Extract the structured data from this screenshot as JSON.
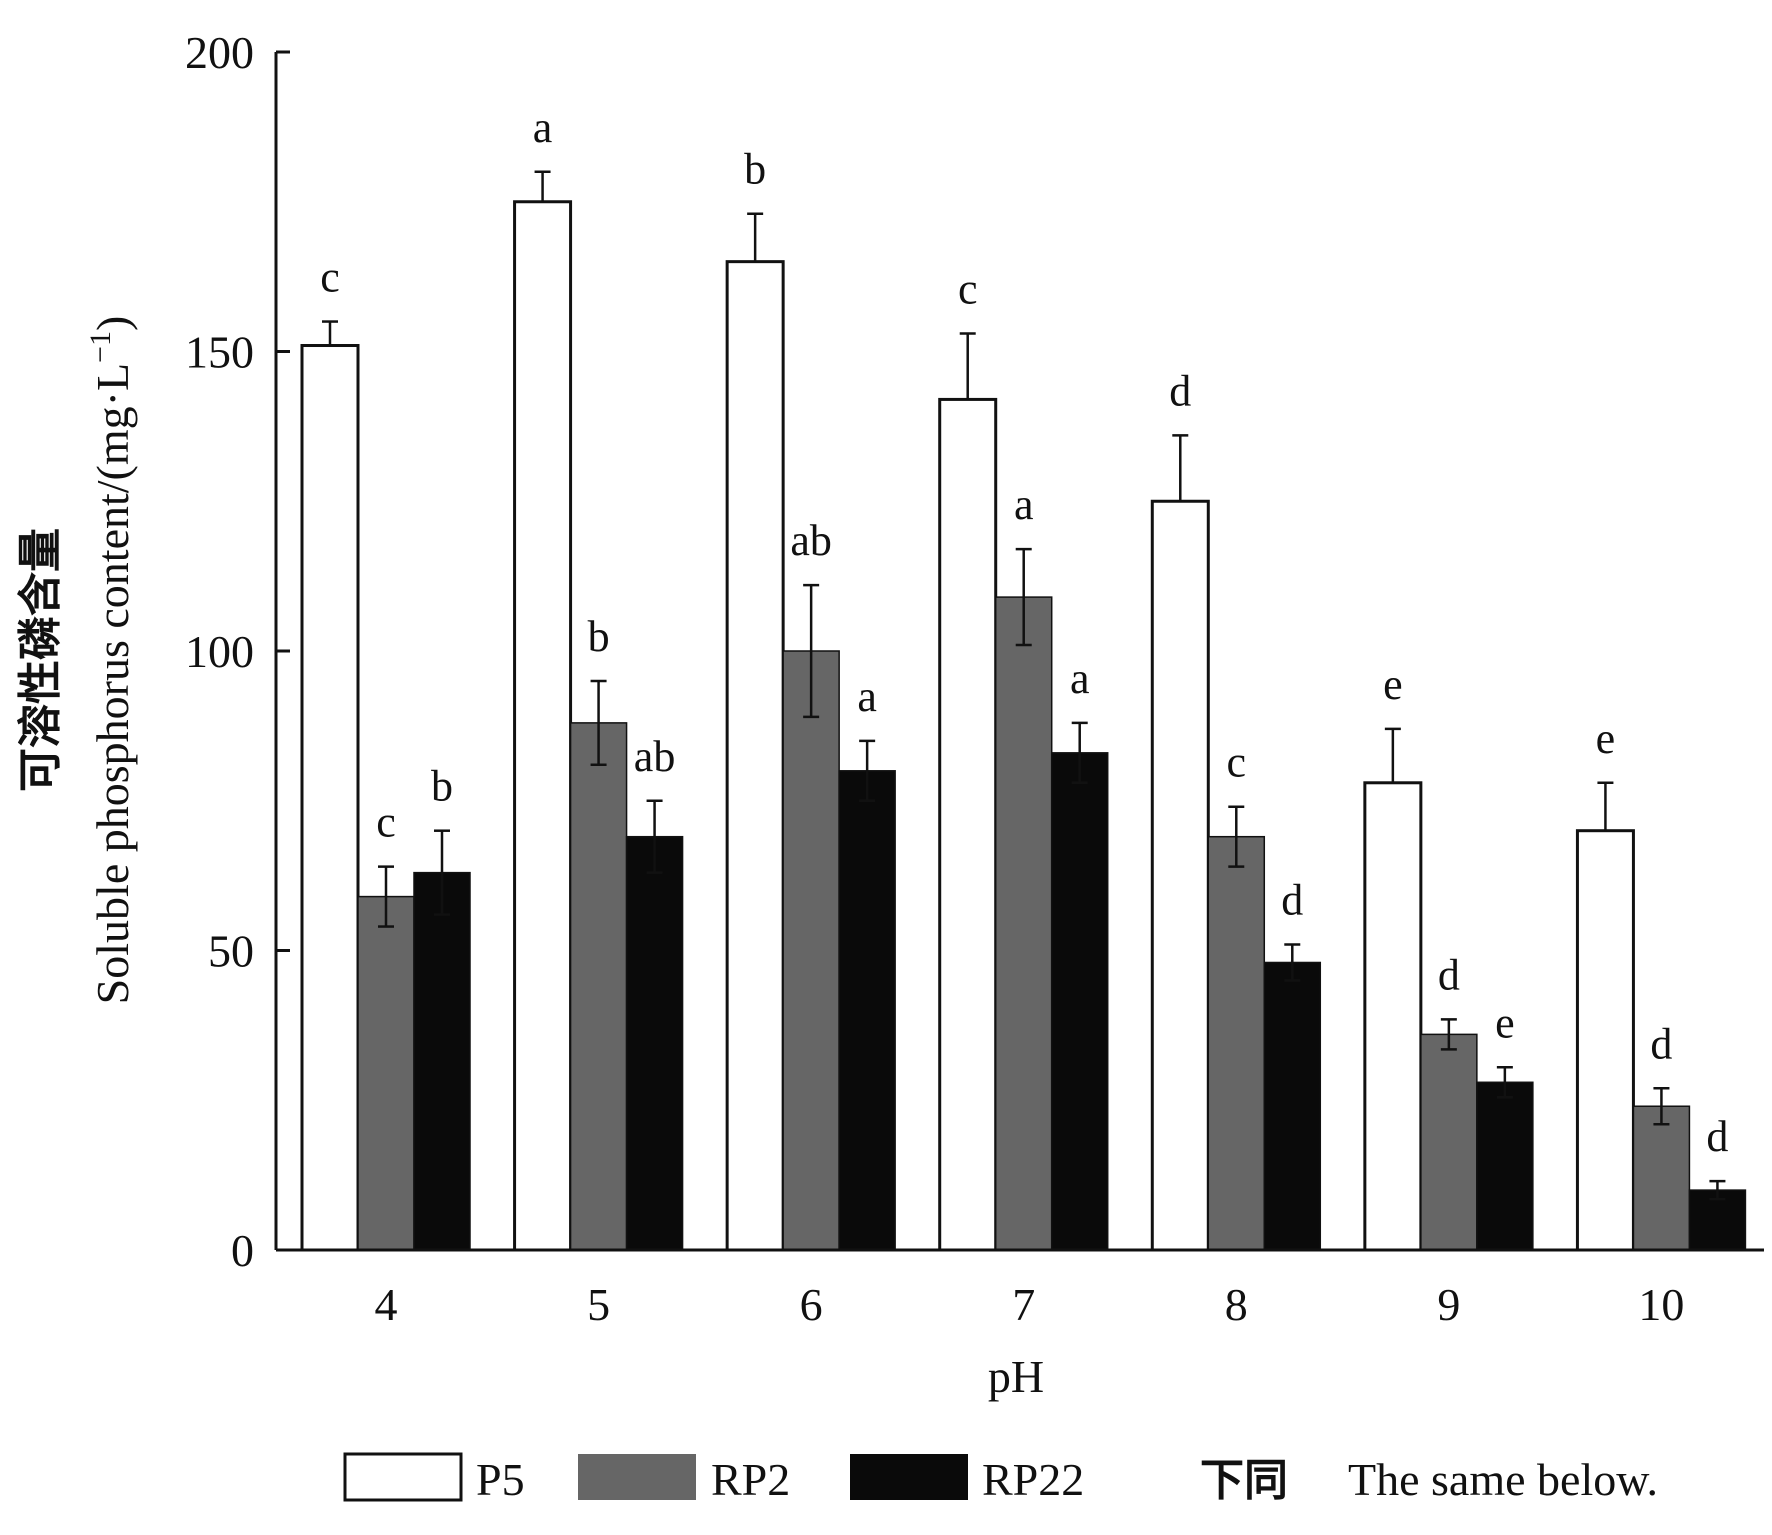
{
  "chart_data": {
    "type": "bar",
    "xlabel": "pH",
    "ylabel_cn": "可溶性磷含量",
    "ylabel_en": "Soluble phosphorus content/(mg·L",
    "ylabel_unit_sup": "−1",
    "ylabel_close": ")",
    "ylim": [
      0,
      200
    ],
    "yticks": [
      0,
      50,
      100,
      150,
      200
    ],
    "categories": [
      "4",
      "5",
      "6",
      "7",
      "8",
      "9",
      "10"
    ],
    "series": [
      {
        "name": "P5",
        "color": "#ffffff",
        "values": [
          151,
          175,
          165,
          142,
          125,
          78,
          70
        ],
        "errors": [
          4,
          5,
          8,
          11,
          11,
          9,
          8
        ],
        "letters": [
          "c",
          "a",
          "b",
          "c",
          "d",
          "e",
          "e"
        ]
      },
      {
        "name": "RP2",
        "color": "#666666",
        "values": [
          59,
          88,
          100,
          109,
          69,
          36,
          24
        ],
        "errors": [
          5,
          7,
          11,
          8,
          5,
          2.5,
          3
        ],
        "letters": [
          "c",
          "b",
          "ab",
          "a",
          "c",
          "d",
          "d"
        ]
      },
      {
        "name": "RP22",
        "color": "#0a0a0a",
        "values": [
          63,
          69,
          80,
          83,
          48,
          28,
          10
        ],
        "errors": [
          7,
          6,
          5,
          5,
          3,
          2.5,
          1.5
        ],
        "letters": [
          "b",
          "ab",
          "a",
          "a",
          "d",
          "e",
          "d"
        ]
      }
    ],
    "legend": {
      "placement": "bottom",
      "note_cn": "下同",
      "note_en": "The same below."
    }
  }
}
